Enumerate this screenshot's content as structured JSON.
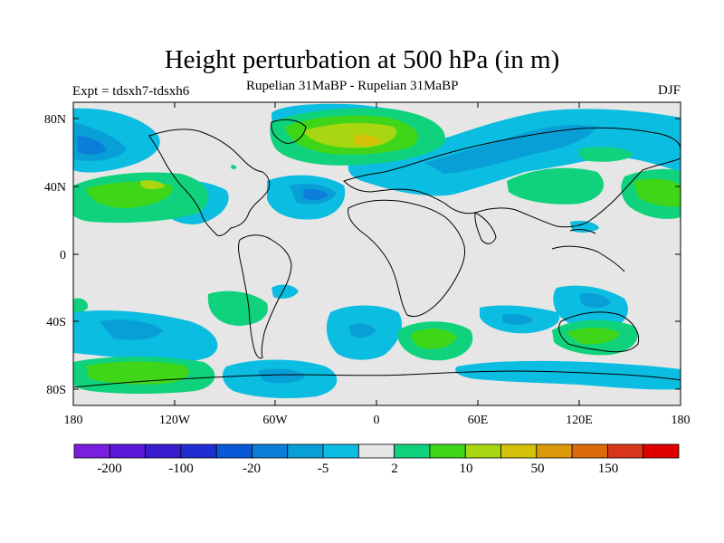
{
  "title": "Height perturbation at 500 hPa (in m)",
  "left_string": "Expt = tdsxh7-tdsxh6",
  "center_string": "Rupelian  31MaBP - Rupelian  31MaBP",
  "right_string": "DJF",
  "lat_labels": [
    "80N",
    "40N",
    "0",
    "40S",
    "80S"
  ],
  "lon_labels": [
    "180",
    "120W",
    "60W",
    "0",
    "60E",
    "120E",
    "180"
  ],
  "colorbar": {
    "colors": [
      "#7a1fe0",
      "#5a19d6",
      "#3a1ccf",
      "#1e2ed0",
      "#0a57d8",
      "#0a7ed8",
      "#089fd6",
      "#0bbde0",
      "#e6e6e6",
      "#10d27d",
      "#3fd61a",
      "#a8d712",
      "#d4c10a",
      "#dc9a0a",
      "#dc6a0a",
      "#d8361a",
      "#e00000"
    ],
    "labels": [
      "-200",
      "-100",
      "-20",
      "-5",
      "2",
      "10",
      "50",
      "150"
    ]
  }
}
